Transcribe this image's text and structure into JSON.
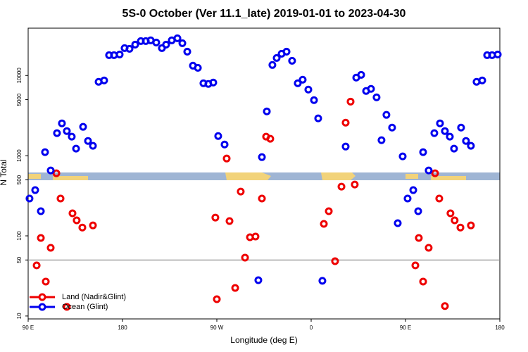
{
  "chart_data": {
    "type": "scatter",
    "title": "5S-0 October (Ver 11.1_late)   2019-01-01 to 2023-04-30",
    "xlabel": "Longitude (deg E)",
    "ylabel": "N Total",
    "xlim": [
      90,
      540
    ],
    "xticks": [
      {
        "value": 90,
        "label": "90 E"
      },
      180,
      {
        "value": 270,
        "label": "90 W"
      },
      {
        "value": 360,
        "label": "0"
      },
      {
        "value": 450,
        "label": "90 E"
      },
      {
        "value": 540,
        "label": "180"
      }
    ],
    "ylim": [
      9.2,
      39000
    ],
    "ylog": true,
    "yticks": [
      10,
      50,
      100,
      500,
      1000,
      5000,
      10000
    ],
    "hline": 50,
    "legend": "lower left",
    "series": [
      {
        "name": "Land (Nadir&Glint)",
        "color": "#ee0000",
        "x": [
          98.1,
          102.1,
          106.8,
          111.5,
          116.9,
          120.9,
          126.9,
          132.3,
          136.3,
          141.7,
          151.8,
          268.6,
          270,
          279.4,
          282.1,
          287.5,
          292.8,
          296.9,
          301.6,
          306.9,
          313,
          317,
          321,
          372.1,
          376.8,
          382.8,
          388.9,
          392.9,
          397.6,
          401.6,
          459.4,
          462.7,
          466.8,
          472.1,
          478.2,
          482.2,
          487.6,
          492.9,
          496.9,
          502.4,
          512.4
        ],
        "values": [
          42.8,
          94.2,
          26.9,
          71,
          604,
          292,
          13,
          191,
          156,
          127,
          135,
          169,
          16.2,
          922,
          153,
          22.4,
          357,
          53.5,
          96,
          98,
          292,
          1726,
          1625,
          141,
          203,
          48.3,
          411,
          2583,
          4730,
          437,
          42.8,
          94.2,
          26.9,
          71,
          604,
          292,
          13.3,
          191,
          156,
          127,
          135
        ]
      },
      {
        "name": "Ocean (Glint)",
        "color": "#0000ee",
        "x": [
          91.3,
          96.7,
          102.1,
          106.1,
          111.5,
          117.5,
          122.2,
          126.9,
          131.6,
          135.7,
          142.4,
          147.1,
          151.8,
          157.2,
          162.5,
          167.2,
          171.9,
          177.3,
          182,
          186.7,
          192.1,
          197.5,
          202.2,
          206.9,
          212.2,
          217.6,
          221.6,
          227,
          232.4,
          237.1,
          241.8,
          247.2,
          251.9,
          257.2,
          261.9,
          266.6,
          271.3,
          277.4,
          309.6,
          313,
          317.7,
          323,
          327.1,
          331.8,
          336.5,
          341.8,
          347.2,
          351.9,
          357.3,
          362.7,
          366.7,
          370.7,
          392.9,
          403,
          407.7,
          412.4,
          417.1,
          422.4,
          427.1,
          431.8,
          437.2,
          442.6,
          447.3,
          452,
          457.4,
          462.1,
          466.8,
          472.1,
          477.5,
          482.9,
          487.6,
          492.3,
          496.3,
          503,
          507.7,
          512.4,
          517.8,
          523.2,
          527.9,
          532.6,
          538
        ],
        "values": [
          292,
          372,
          203,
          1107,
          655,
          1910,
          2533,
          2028,
          1726,
          1224,
          2290,
          1528,
          1327,
          8340,
          8690,
          17950,
          17950,
          18300,
          21980,
          21540,
          24320,
          26900,
          26900,
          27480,
          25830,
          21980,
          24320,
          27480,
          29170,
          25330,
          19870,
          13270,
          12480,
          8010,
          7850,
          8170,
          1760,
          1380,
          28,
          960,
          3570,
          13540,
          16560,
          18700,
          19870,
          15280,
          8010,
          8860,
          6680,
          4930,
          2920,
          27.5,
          1300,
          9420,
          10200,
          6410,
          6810,
          5350,
          1560,
          3230,
          2240,
          144,
          980,
          292,
          372,
          203,
          1107,
          655,
          1910,
          2533,
          2028,
          1726,
          1224,
          2240,
          1528,
          1327,
          8340,
          8690,
          17950,
          17950,
          18300
        ]
      }
    ]
  }
}
